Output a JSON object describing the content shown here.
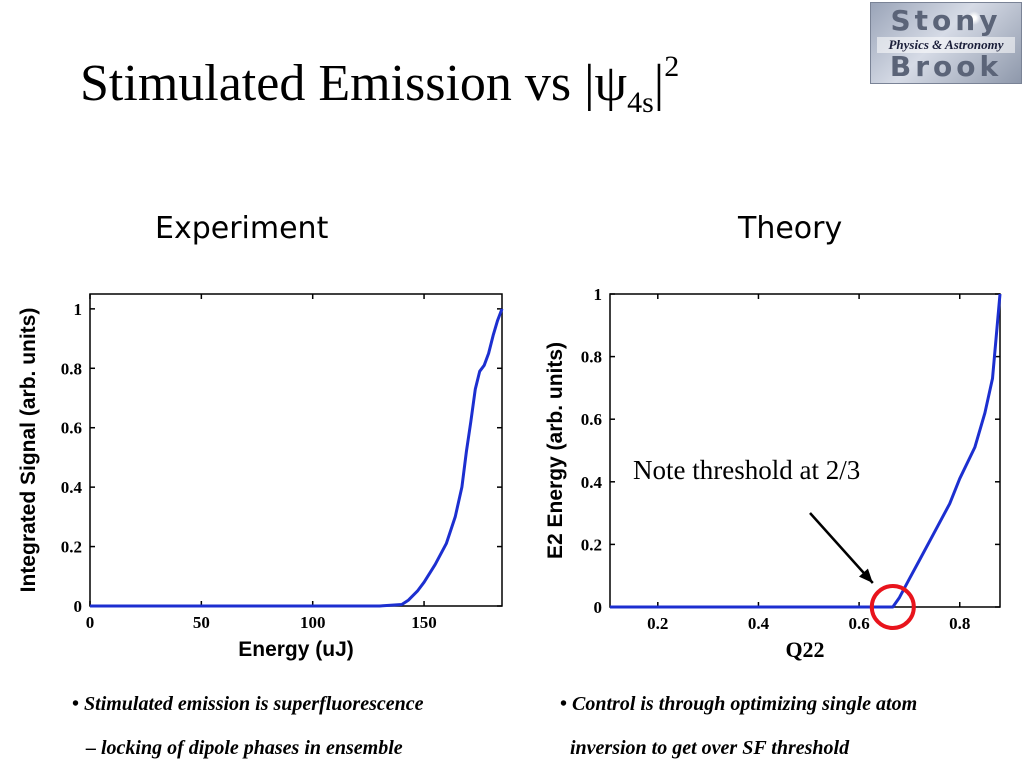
{
  "slide": {
    "title_main": "Stimulated Emission vs |ψ",
    "title_sub": "4s",
    "title_tail": "|",
    "title_sup": "2"
  },
  "logo": {
    "top_word": "Stony",
    "middle_word": "Physics & Astronomy",
    "bottom_word": "Brook"
  },
  "panels": {
    "experiment_heading": "Experiment",
    "theory_heading": "Theory"
  },
  "annotation": {
    "text": "Note threshold at 2/3",
    "circle_color": "#e8141c"
  },
  "bullets": {
    "left": {
      "marker": "•",
      "line1": "Stimulated emission is superfluorescence",
      "line2": "– locking of dipole phases in ensemble"
    },
    "right": {
      "marker": "•",
      "line1": "Control is through optimizing single atom",
      "line2": "inversion to get over SF threshold"
    }
  },
  "chart_data": [
    {
      "type": "line",
      "title": "",
      "xlabel": "Energy (uJ)",
      "ylabel": "Integrated Signal (arb. units)",
      "xlim": [
        0,
        185
      ],
      "ylim": [
        0,
        1.05
      ],
      "xticks": [
        0,
        50,
        100,
        150
      ],
      "yticks": [
        0,
        0.2,
        0.4,
        0.6,
        0.8,
        1
      ],
      "xtick_labels": [
        "0",
        "50",
        "100",
        "150"
      ],
      "ytick_labels": [
        "0",
        "0.2",
        "0.4",
        "0.6",
        "0.8",
        "1"
      ],
      "grid": false,
      "line_color": "#1c2fd0",
      "series": [
        {
          "x": [
            0,
            130,
            140,
            143,
            147,
            150,
            155,
            160,
            164,
            167,
            169,
            171,
            173,
            175,
            177,
            179,
            181,
            183,
            185
          ],
          "y": [
            0,
            0,
            0.005,
            0.02,
            0.05,
            0.08,
            0.14,
            0.21,
            0.3,
            0.4,
            0.52,
            0.62,
            0.73,
            0.79,
            0.81,
            0.85,
            0.91,
            0.96,
            1.0
          ]
        }
      ]
    },
    {
      "type": "line",
      "title": "",
      "xlabel": "Q22",
      "ylabel": "E2 Energy (arb. units)",
      "xlim": [
        0.105,
        0.88
      ],
      "ylim": [
        0,
        1.0
      ],
      "xticks": [
        0.2,
        0.4,
        0.6,
        0.8
      ],
      "yticks": [
        0,
        0.2,
        0.4,
        0.6,
        0.8,
        1
      ],
      "xtick_labels": [
        "0.2",
        "0.4",
        "0.6",
        "0.8"
      ],
      "ytick_labels": [
        "0",
        "0.2",
        "0.4",
        "0.6",
        "0.8",
        "1"
      ],
      "grid": false,
      "line_color": "#1c2fd0",
      "series": [
        {
          "x": [
            0.105,
            0.6,
            0.667,
            0.68,
            0.7,
            0.72,
            0.75,
            0.78,
            0.8,
            0.83,
            0.85,
            0.865,
            0.88
          ],
          "y": [
            0,
            0,
            0,
            0.03,
            0.09,
            0.15,
            0.24,
            0.33,
            0.41,
            0.51,
            0.62,
            0.73,
            1.0
          ]
        }
      ]
    }
  ]
}
